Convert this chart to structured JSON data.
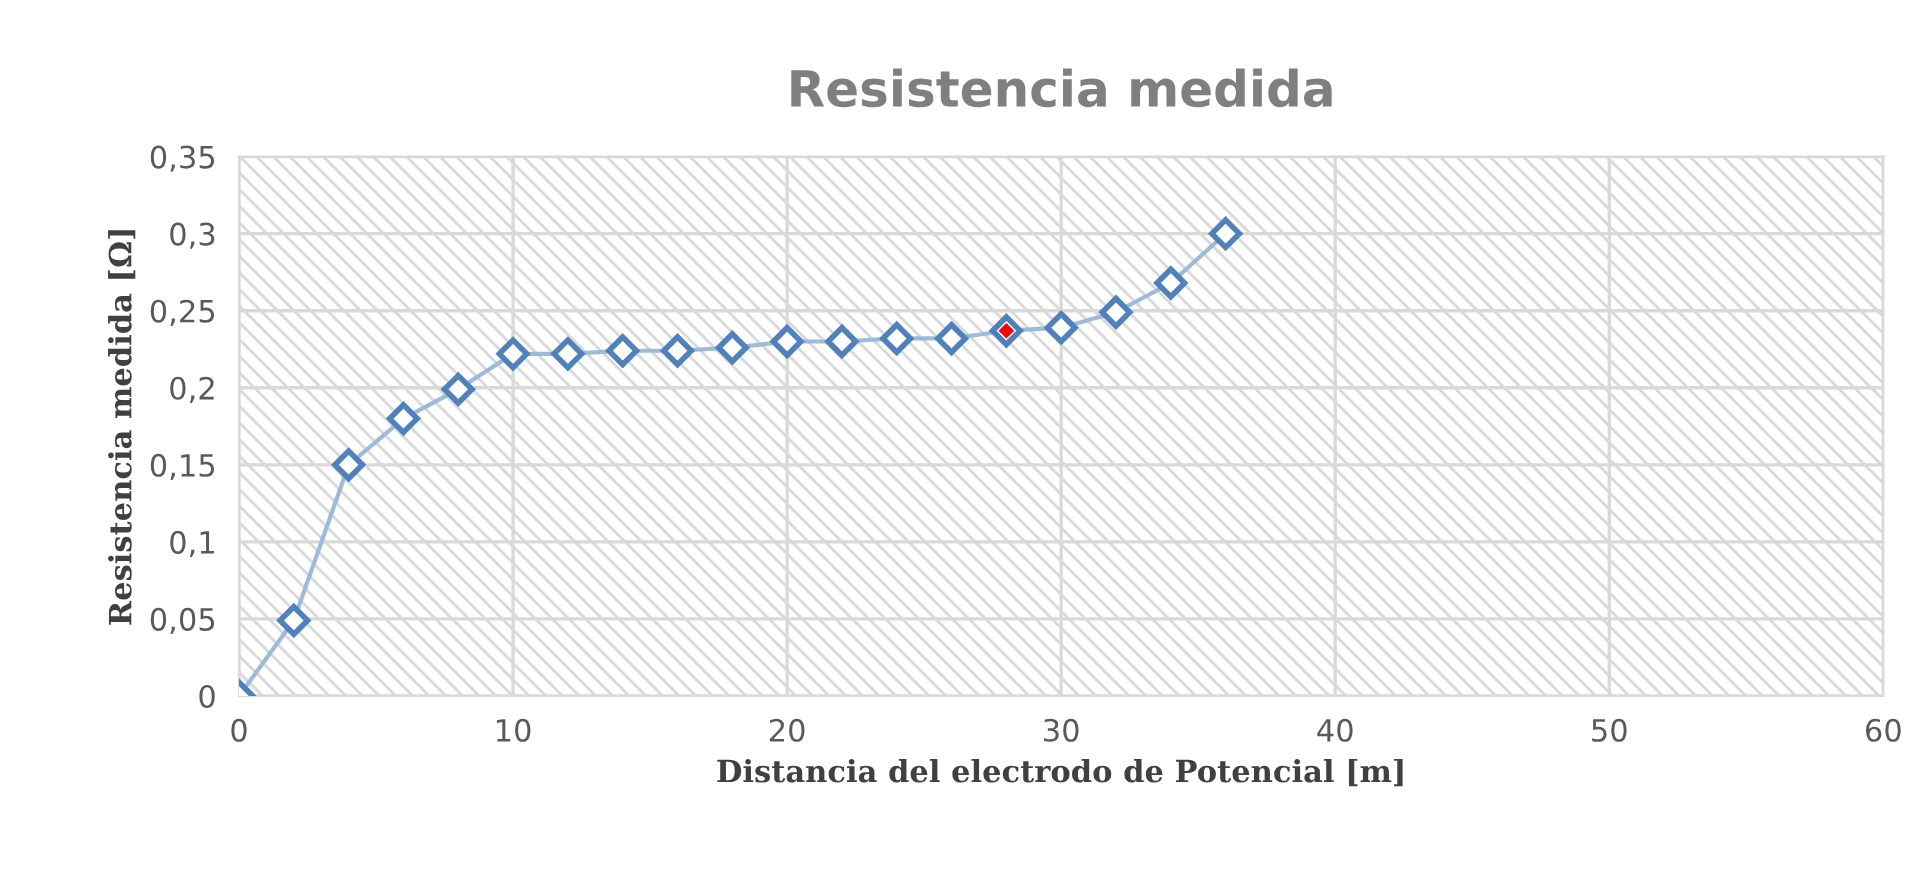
{
  "chart_data": {
    "type": "line",
    "title": "Resistencia medida",
    "xlabel": "Distancia del electrodo de Potencial [m]",
    "ylabel": "Resistencia medida [Ω]",
    "x": [
      0,
      2,
      4,
      6,
      8,
      10,
      12,
      14,
      16,
      18,
      20,
      22,
      24,
      26,
      28,
      30,
      32,
      34,
      36
    ],
    "series": [
      {
        "color": "#4f81bd",
        "values": [
          0,
          0.049,
          0.15,
          0.18,
          0.199,
          0.222,
          0.222,
          0.224,
          0.224,
          0.226,
          0.23,
          0.23,
          0.232,
          0.232,
          0.237,
          0.239,
          0.249,
          0.268,
          0.3
        ]
      },
      {
        "type": "scatter",
        "color": "#ff0000",
        "x": [
          28
        ],
        "values": [
          0.237
        ]
      }
    ],
    "xlim": [
      0,
      60
    ],
    "xticks": [
      0,
      10,
      20,
      30,
      40,
      50,
      60
    ],
    "ylim": [
      0,
      0.35
    ],
    "yticks": [
      {
        "value": 0,
        "label": "0"
      },
      {
        "value": 0.05,
        "label": "0,05"
      },
      {
        "value": 0.1,
        "label": "0,1"
      },
      {
        "value": 0.15,
        "label": "0,15"
      },
      {
        "value": 0.2,
        "label": "0,2"
      },
      {
        "value": 0.25,
        "label": "0,25"
      },
      {
        "value": 0.3,
        "label": "0,3"
      },
      {
        "value": 0.35,
        "label": "0,35"
      }
    ],
    "grid": true,
    "marker": "diamond",
    "legend": false
  }
}
